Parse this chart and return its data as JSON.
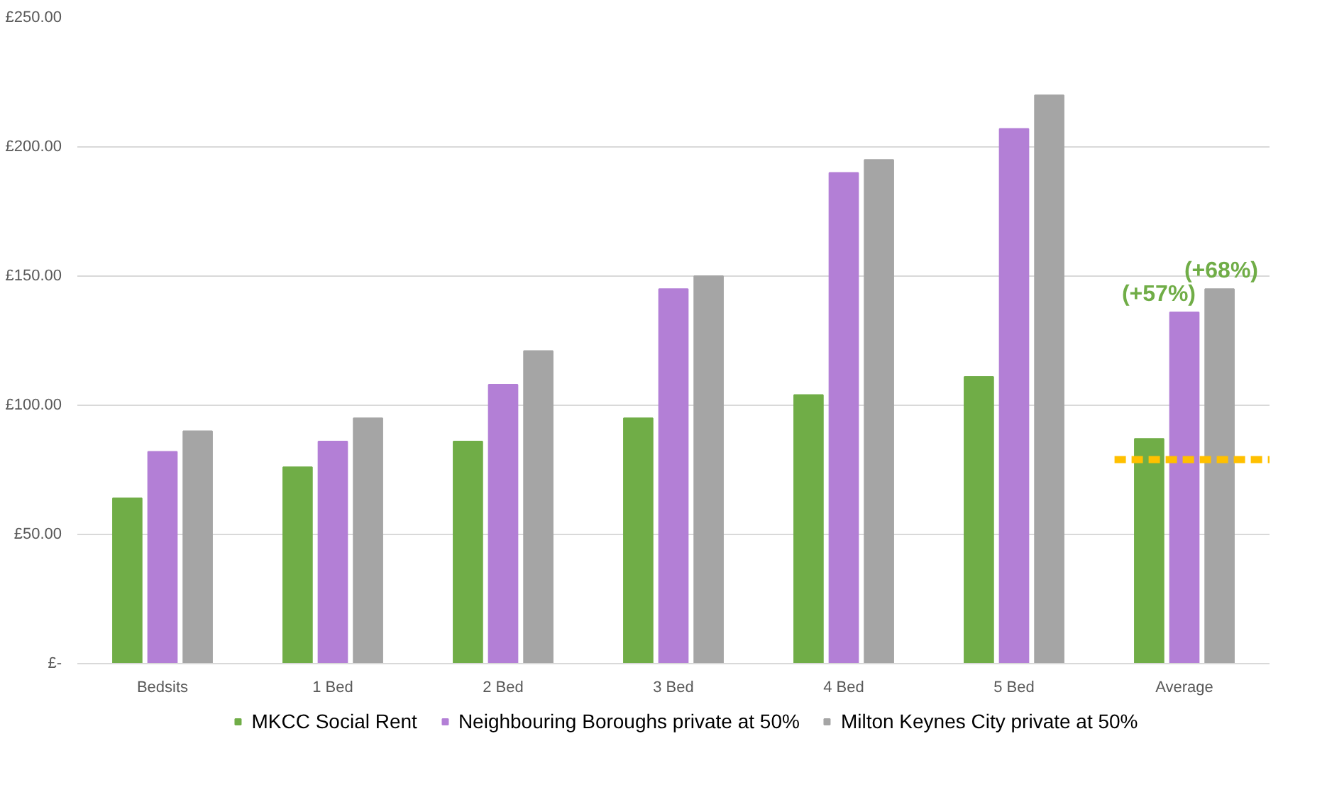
{
  "chart_data": {
    "type": "bar",
    "categories": [
      "Bedsits",
      "1 Bed",
      "2 Bed",
      "3 Bed",
      "4 Bed",
      "5 Bed",
      "Average"
    ],
    "series": [
      {
        "name": "MKCC Social Rent",
        "color": "#70ad47",
        "values": [
          64,
          76,
          86,
          95,
          104,
          111,
          87
        ]
      },
      {
        "name": "Neighbouring Boroughs private at 50%",
        "color": "#b37fd6",
        "values": [
          82,
          86,
          108,
          145,
          190,
          207,
          136
        ]
      },
      {
        "name": "Milton Keynes City private at 50%",
        "color": "#a5a5a5",
        "values": [
          90,
          95,
          121,
          150,
          195,
          220,
          145
        ]
      }
    ],
    "ylim": [
      0,
      250
    ],
    "yticks": [
      {
        "value": 0,
        "label": "£-"
      },
      {
        "value": 50,
        "label": "£50.00"
      },
      {
        "value": 100,
        "label": "£100.00"
      },
      {
        "value": 150,
        "label": "£150.00"
      },
      {
        "value": 200,
        "label": "£200.00"
      },
      {
        "value": 250,
        "label": "£250.00"
      }
    ],
    "grid": "y",
    "legend": "bottom",
    "ref_lines": [
      {
        "axis": "y",
        "value": 79,
        "color": "#ffc000",
        "line_style": "dashed"
      }
    ],
    "annotations": [
      {
        "text": "(+57%)",
        "x": "Average",
        "y": 136
      },
      "(+68%)"
    ]
  }
}
